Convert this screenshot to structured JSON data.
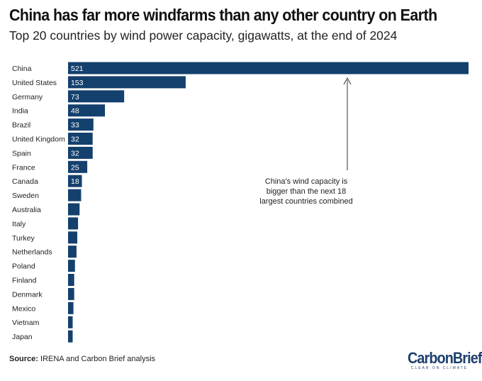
{
  "title": "China has far more windfarms than any other country on Earth",
  "subtitle": "Top 20 countries by wind power capacity, gigawatts, at the end of 2024",
  "source_label": "Source:",
  "source_text": " IRENA and Carbon Brief analysis",
  "logo": {
    "name": "CarbonBrief",
    "tagline": "CLEAR ON CLIMATE"
  },
  "colors": {
    "bar": "#14406e",
    "label": "#ffffff"
  },
  "chart_data": {
    "type": "bar",
    "orientation": "horizontal",
    "title": "China has far more windfarms than any other country on Earth",
    "subtitle": "Top 20 countries by wind power capacity, gigawatts, at the end of 2024",
    "xlabel": "",
    "ylabel": "",
    "xlim": [
      0,
      521
    ],
    "grid": false,
    "categories": [
      "China",
      "United States",
      "Germany",
      "India",
      "Brazil",
      "United Kingdom",
      "Spain",
      "France",
      "Canada",
      "Sweden",
      "Australia",
      "Italy",
      "Turkey",
      "Netherlands",
      "Poland",
      "Finland",
      "Denmark",
      "Mexico",
      "Vietnam",
      "Japan"
    ],
    "values": [
      521,
      153,
      73,
      48,
      33,
      32,
      32,
      25,
      18,
      17,
      15,
      13,
      12,
      11,
      9,
      8,
      8,
      7,
      6,
      6
    ],
    "labeled": [
      true,
      true,
      true,
      true,
      true,
      true,
      true,
      true,
      true,
      false,
      false,
      false,
      false,
      false,
      false,
      false,
      false,
      false,
      false,
      false
    ],
    "annotation": [
      "China's wind capacity is",
      "bigger than the next 18",
      "largest countries combined"
    ]
  }
}
